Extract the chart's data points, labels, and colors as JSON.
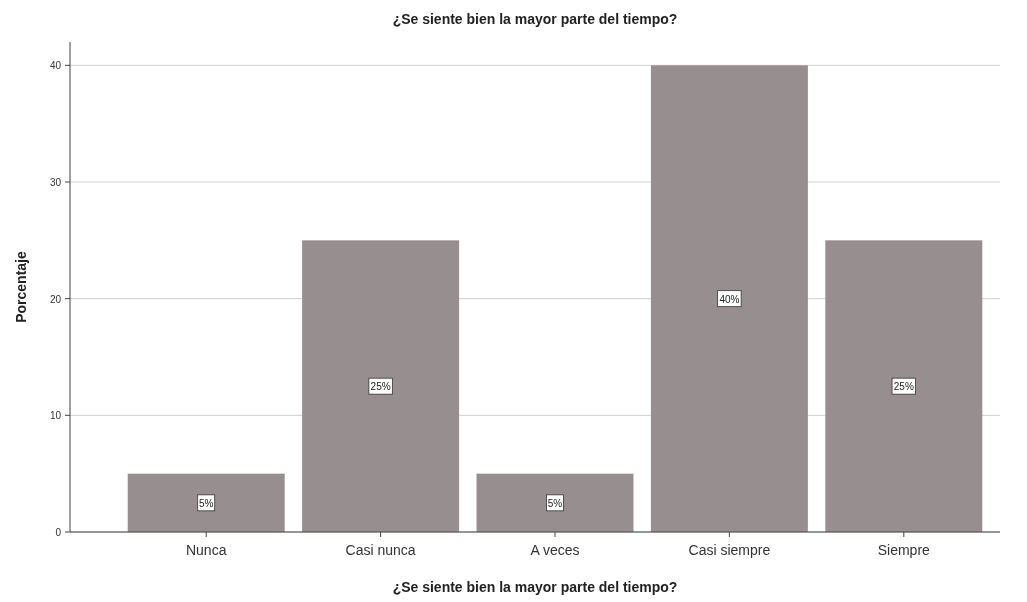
{
  "chart_data": {
    "type": "bar",
    "title": "¿Se siente bien la mayor parte del tiempo?",
    "xlabel": "¿Se siente bien la mayor parte del tiempo?",
    "ylabel": "Porcentaje",
    "categories": [
      "Nunca",
      "Casi nunca",
      "A veces",
      "Casi siempre",
      "Siempre"
    ],
    "values": [
      5,
      25,
      5,
      40,
      25
    ],
    "color": "#978f8f",
    "value_labels": [
      "5%",
      "25%",
      "5%",
      "40%",
      "25%"
    ],
    "ylim": [
      0,
      42
    ],
    "yticks": [
      0,
      10,
      20,
      30,
      40
    ],
    "grid": "y"
  }
}
